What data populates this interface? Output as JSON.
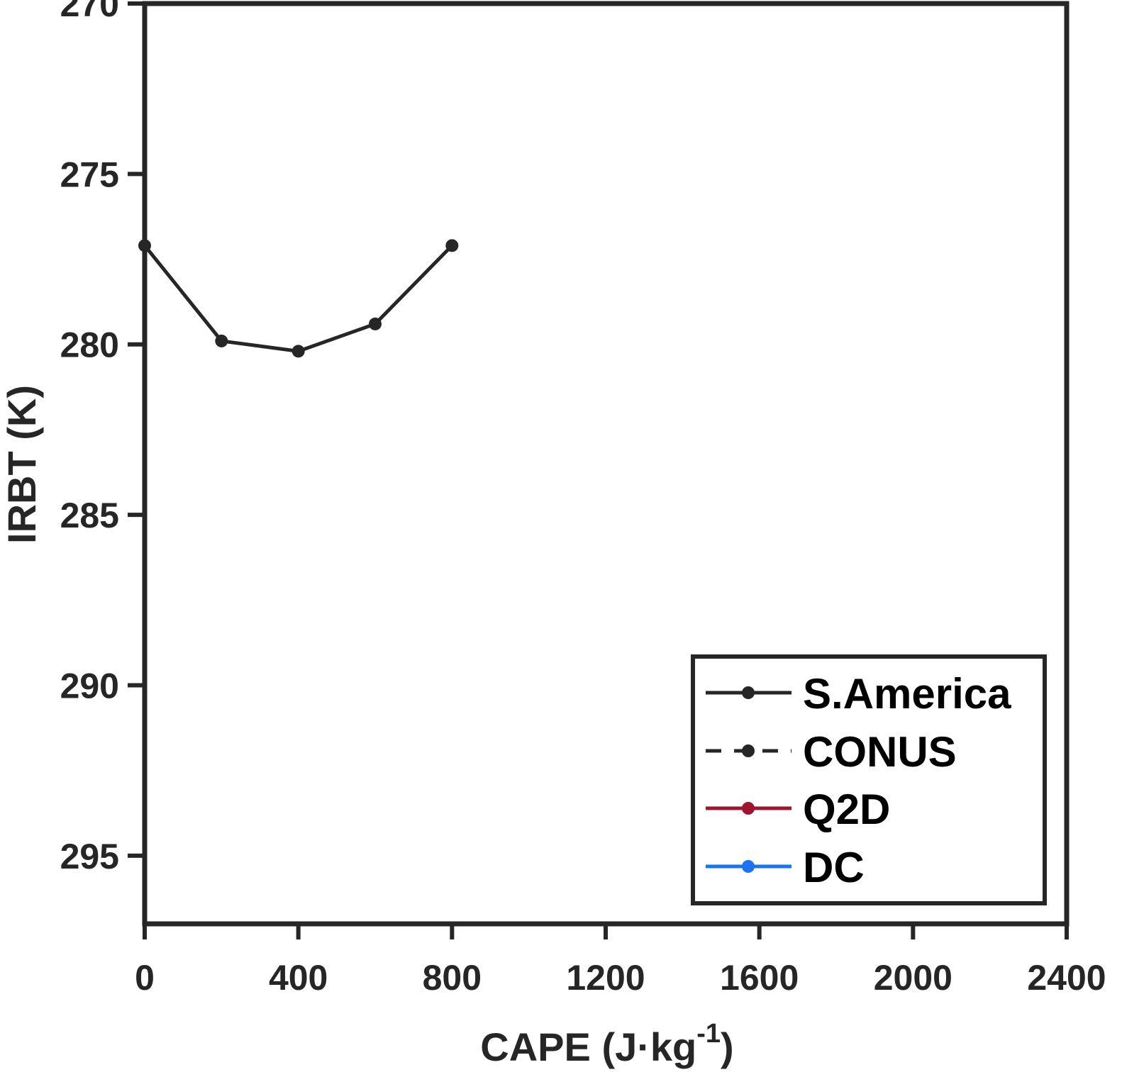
{
  "chart_data": {
    "type": "line",
    "xlabel": {
      "main": "CAPE (J·kg",
      "sup": "-1",
      "close": ")"
    },
    "ylabel": "IRBT (K)",
    "xlim": [
      0,
      2400
    ],
    "ylim": [
      270,
      297
    ],
    "y_reversed": true,
    "x_ticks": [
      0,
      400,
      800,
      1200,
      1600,
      2000,
      2400
    ],
    "x_tick_labels": [
      "0",
      "400",
      "800",
      "1200",
      "1600",
      "2000",
      "2400"
    ],
    "y_ticks": [
      270,
      275,
      280,
      285,
      290,
      295
    ],
    "y_tick_labels": [
      "270",
      "275",
      "280",
      "285",
      "290",
      "295"
    ],
    "grid": false,
    "legend_position": "bottom-right",
    "series": [
      {
        "name": "S.America",
        "color": "#262626",
        "dash": "solid",
        "x": [
          0,
          200,
          400,
          600,
          800
        ],
        "y": [
          277.1,
          279.9,
          280.2,
          279.4,
          277.1
        ]
      },
      {
        "name": "CONUS",
        "color": "#262626",
        "dash": "dashed",
        "x": [],
        "y": []
      },
      {
        "name": "Q2D",
        "color": "#a0142d",
        "dash": "solid",
        "x": [],
        "y": []
      },
      {
        "name": "DC",
        "color": "#1a73f0",
        "dash": "solid",
        "x": [],
        "y": []
      }
    ]
  }
}
